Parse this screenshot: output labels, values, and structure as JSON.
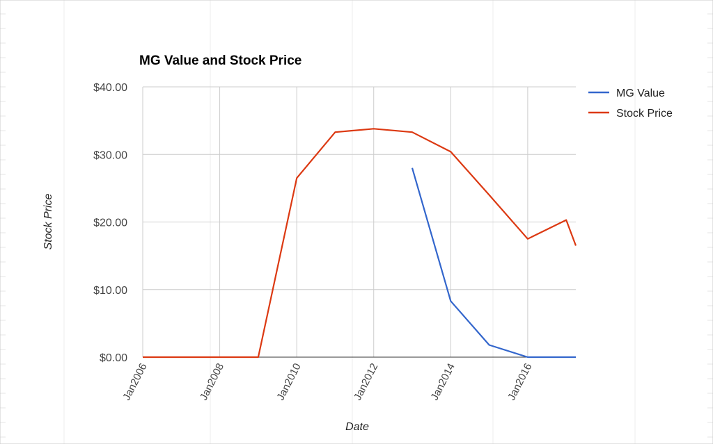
{
  "chart_data": {
    "type": "line",
    "title": "MG Value and Stock Price",
    "xlabel": "Date",
    "ylabel": "Stock Price",
    "x_ticks": [
      "Jan2006",
      "Jan2008",
      "Jan2010",
      "Jan2012",
      "Jan2014",
      "Jan2016"
    ],
    "y_ticks": [
      "$0.00",
      "$10.00",
      "$20.00",
      "$30.00",
      "$40.00"
    ],
    "ylim": [
      0,
      40
    ],
    "xlim": [
      "2006-01",
      "2017-04"
    ],
    "grid": true,
    "legend_position": "right",
    "series": [
      {
        "name": "MG Value",
        "color": "#3366cc",
        "points": [
          {
            "x": "2013-01",
            "y": 28.0
          },
          {
            "x": "2014-01",
            "y": 8.3
          },
          {
            "x": "2015-01",
            "y": 1.8
          },
          {
            "x": "2016-01",
            "y": 0.0
          },
          {
            "x": "2017-01",
            "y": 0.0
          },
          {
            "x": "2017-04",
            "y": 0.0
          }
        ]
      },
      {
        "name": "Stock Price",
        "color": "#dc3912",
        "points": [
          {
            "x": "2006-01",
            "y": 0.0
          },
          {
            "x": "2007-01",
            "y": 0.0
          },
          {
            "x": "2008-01",
            "y": 0.0
          },
          {
            "x": "2009-01",
            "y": 0.0
          },
          {
            "x": "2010-01",
            "y": 26.5
          },
          {
            "x": "2011-01",
            "y": 33.3
          },
          {
            "x": "2012-01",
            "y": 33.8
          },
          {
            "x": "2013-01",
            "y": 33.3
          },
          {
            "x": "2014-01",
            "y": 30.4
          },
          {
            "x": "2015-01",
            "y": 24.0
          },
          {
            "x": "2016-01",
            "y": 17.5
          },
          {
            "x": "2017-01",
            "y": 20.3
          },
          {
            "x": "2017-04",
            "y": 16.5
          }
        ]
      }
    ]
  }
}
